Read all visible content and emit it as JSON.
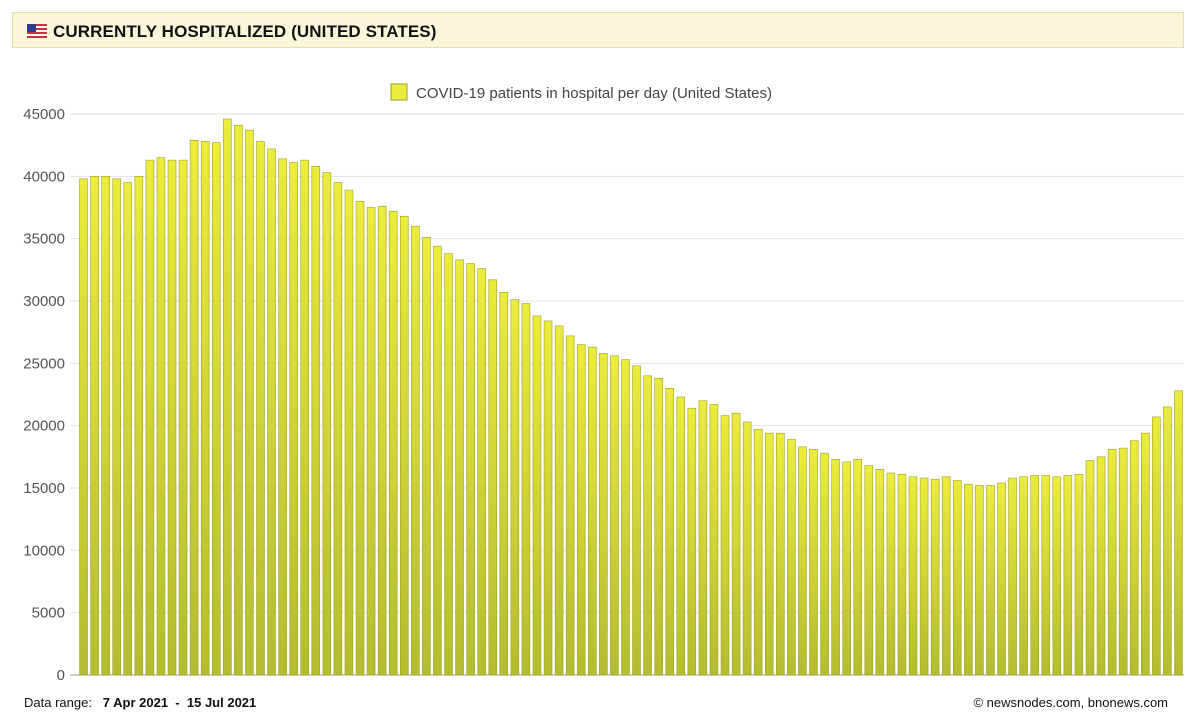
{
  "header": {
    "title": "CURRENTLY HOSPITALIZED (UNITED STATES)",
    "flag_icon": "us-flag-icon"
  },
  "footer": {
    "range_label": "Data range:",
    "range_start": "7 Apr 2021",
    "range_sep": "-",
    "range_end": "15 Jul 2021",
    "copyright": "©  newsnodes.com, bnonews.com"
  },
  "colors": {
    "bar_top": "#ecec3c",
    "bar_bottom": "#b4bc30",
    "bar_border": "#9aa12a",
    "grid": "#e2e2e2",
    "legend_swatch": "#ecec3c"
  },
  "chart_data": {
    "type": "bar",
    "title": "",
    "legend": [
      "COVID-19 patients in hospital per day (United States)"
    ],
    "legend_position": "top-center",
    "grid": true,
    "ylim": [
      0,
      45000
    ],
    "yticks": [
      0,
      5000,
      10000,
      15000,
      20000,
      25000,
      30000,
      35000,
      40000,
      45000
    ],
    "x_start": "2021-04-07",
    "x_end": "2021-07-15",
    "series": [
      {
        "name": "COVID-19 patients in hospital per day (United States)",
        "values": [
          39800,
          40000,
          40000,
          39800,
          39500,
          40000,
          41300,
          41500,
          41300,
          41300,
          42900,
          42800,
          42700,
          44600,
          44100,
          43700,
          42800,
          42200,
          41400,
          41100,
          41300,
          40800,
          40300,
          39500,
          38900,
          38000,
          37500,
          37600,
          37200,
          36800,
          36000,
          35100,
          34400,
          33800,
          33300,
          33000,
          32600,
          31700,
          30700,
          30100,
          29800,
          28800,
          28400,
          28000,
          27200,
          26500,
          26300,
          25800,
          25600,
          25300,
          24800,
          24000,
          23800,
          23000,
          22300,
          21400,
          22000,
          21700,
          20800,
          21000,
          20300,
          19700,
          19400,
          19400,
          18900,
          18300,
          18100,
          17800,
          17300,
          17100,
          17300,
          16800,
          16500,
          16200,
          16100,
          15900,
          15800,
          15700,
          15900,
          15600,
          15300,
          15200,
          15200,
          15400,
          15800,
          15900,
          16000,
          16000,
          15900,
          16000,
          16100,
          17200,
          17500,
          18100,
          18200,
          18800,
          19400,
          20700,
          21500,
          22800
        ]
      }
    ]
  }
}
